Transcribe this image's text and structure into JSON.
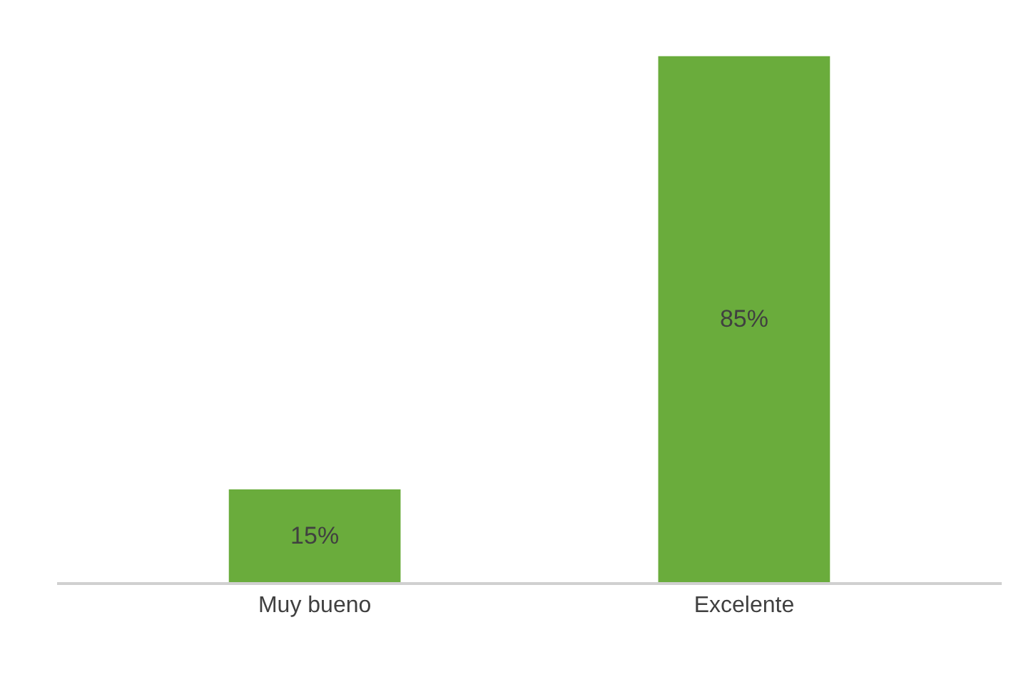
{
  "chart_data": {
    "type": "bar",
    "categories": [
      "Muy bueno",
      "Excelente"
    ],
    "values": [
      15,
      85
    ],
    "value_labels": [
      "15%",
      "85%"
    ],
    "color": "#6aac3c",
    "grid": false,
    "legend": false
  }
}
